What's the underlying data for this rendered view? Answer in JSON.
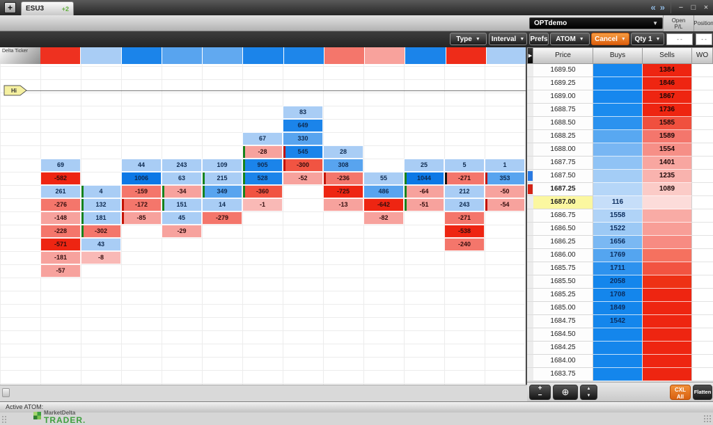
{
  "window": {
    "new_tab": "+",
    "tab": "ESU3",
    "tab_badge": "+2",
    "nav_left": "«",
    "nav_right": "»",
    "minimize": "−",
    "maximize": "□",
    "close": "×"
  },
  "toolbar": {
    "type": "Type",
    "interval": "Interval",
    "prefs": "Prefs",
    "atom": "ATOM",
    "cancel": "Cancel",
    "qty": "Qty 1",
    "account": "OPTdemo",
    "open_pl_label": "Open\nP/L",
    "open_pl_value": "- -",
    "position_label": "Position",
    "position_value": "- -"
  },
  "delta_ticker": {
    "label": "Delta Ticker",
    "cells": [
      "#ee3120",
      "#a9cdf5",
      "#1b84ea",
      "#58a4ef",
      "#61a9f0",
      "#1b84ea",
      "#1e86ea",
      "#f4766b",
      "#f8a29c",
      "#1b84ea",
      "#ee2c19",
      "#a9cdf5"
    ]
  },
  "hi_marker": "Hi",
  "chart_data": {
    "type": "heatmap",
    "title": "Delta Ticker footprint",
    "palette": {
      "lb": "#a9cdf5",
      "mb": "#58a4ef",
      "sb": "#1b84ea",
      "xb": "#0c78e6",
      "lr": "#f9b9b6",
      "pr": "#f7a29d",
      "sr": "#f4766b",
      "mr": "#f15442",
      "xr": "#ee2512"
    },
    "bar_colors": {
      "green": "#15831c",
      "red": "#c41303",
      "black": "#111111"
    },
    "columns": [
      {
        "x": 1,
        "cells": [
          {
            "row": 4,
            "value": 69,
            "color": "lb"
          },
          {
            "row": 5,
            "value": -582,
            "color": "xr"
          },
          {
            "row": 6,
            "value": 261,
            "color": "lb"
          },
          {
            "row": 7,
            "value": -276,
            "color": "sr"
          },
          {
            "row": 8,
            "value": -148,
            "color": "pr"
          },
          {
            "row": 9,
            "value": -228,
            "color": "sr"
          },
          {
            "row": 10,
            "value": -571,
            "color": "xr"
          },
          {
            "row": 11,
            "value": -181,
            "color": "pr"
          },
          {
            "row": 12,
            "value": -57,
            "color": "pr"
          }
        ]
      },
      {
        "x": 2,
        "cells": [
          {
            "row": 6,
            "value": 4,
            "color": "lb",
            "bar": "green"
          },
          {
            "row": 7,
            "value": 132,
            "color": "lb",
            "bar": "green"
          },
          {
            "row": 8,
            "value": 181,
            "color": "lb",
            "bar": "green"
          },
          {
            "row": 9,
            "value": -302,
            "color": "sr",
            "bar": "green"
          },
          {
            "row": 10,
            "value": 43,
            "color": "lb"
          },
          {
            "row": 11,
            "value": -8,
            "color": "lr"
          }
        ]
      },
      {
        "x": 3,
        "cells": [
          {
            "row": 4,
            "value": 44,
            "color": "lb"
          },
          {
            "row": 5,
            "value": 1006,
            "color": "xb"
          },
          {
            "row": 6,
            "value": -159,
            "color": "sr"
          },
          {
            "row": 7,
            "value": -172,
            "color": "sr",
            "bar": "red"
          },
          {
            "row": 8,
            "value": -85,
            "color": "pr",
            "bar": "red"
          }
        ]
      },
      {
        "x": 4,
        "cells": [
          {
            "row": 4,
            "value": 243,
            "color": "lb"
          },
          {
            "row": 5,
            "value": 63,
            "color": "lb"
          },
          {
            "row": 6,
            "value": -34,
            "color": "pr",
            "bar": "green"
          },
          {
            "row": 7,
            "value": 151,
            "color": "lb",
            "bar": "green"
          },
          {
            "row": 8,
            "value": 45,
            "color": "lb"
          },
          {
            "row": 9,
            "value": -29,
            "color": "pr"
          }
        ]
      },
      {
        "x": 5,
        "cells": [
          {
            "row": 4,
            "value": 109,
            "color": "lb"
          },
          {
            "row": 5,
            "value": 215,
            "color": "lb",
            "bar": "green"
          },
          {
            "row": 6,
            "value": 349,
            "color": "mb",
            "bar": "green"
          },
          {
            "row": 7,
            "value": 14,
            "color": "lb"
          },
          {
            "row": 8,
            "value": -279,
            "color": "sr"
          }
        ]
      },
      {
        "x": 6,
        "cells": [
          {
            "row": 2,
            "value": 67,
            "color": "lb"
          },
          {
            "row": 3,
            "value": -28,
            "color": "pr",
            "bar": "green"
          },
          {
            "row": 4,
            "value": 905,
            "color": "sb",
            "bar": "green"
          },
          {
            "row": 5,
            "value": 528,
            "color": "sb",
            "bar": "green"
          },
          {
            "row": 6,
            "value": -360,
            "color": "mr",
            "bar": "green"
          },
          {
            "row": 7,
            "value": -1,
            "color": "lr"
          }
        ]
      },
      {
        "x": 7,
        "cells": [
          {
            "row": 0,
            "value": 83,
            "color": "lb"
          },
          {
            "row": 1,
            "value": 649,
            "color": "sb"
          },
          {
            "row": 2,
            "value": 330,
            "color": "mb"
          },
          {
            "row": 3,
            "value": 545,
            "color": "sb",
            "bar": "red"
          },
          {
            "row": 4,
            "value": -300,
            "color": "mr",
            "bar": "red"
          },
          {
            "row": 5,
            "value": -52,
            "color": "pr"
          }
        ]
      },
      {
        "x": 8,
        "cells": [
          {
            "row": 3,
            "value": 28,
            "color": "lb"
          },
          {
            "row": 4,
            "value": 308,
            "color": "mb"
          },
          {
            "row": 5,
            "value": -236,
            "color": "sr",
            "bar": "red"
          },
          {
            "row": 6,
            "value": -725,
            "color": "xr"
          },
          {
            "row": 7,
            "value": -13,
            "color": "pr"
          }
        ]
      },
      {
        "x": 9,
        "cells": [
          {
            "row": 5,
            "value": 55,
            "color": "lb"
          },
          {
            "row": 6,
            "value": 486,
            "color": "mb"
          },
          {
            "row": 7,
            "value": -642,
            "color": "xr"
          },
          {
            "row": 8,
            "value": -82,
            "color": "pr"
          }
        ]
      },
      {
        "x": 10,
        "cells": [
          {
            "row": 4,
            "value": 25,
            "color": "lb"
          },
          {
            "row": 5,
            "value": 1044,
            "color": "xb",
            "bar": "green"
          },
          {
            "row": 6,
            "value": -64,
            "color": "pr",
            "bar": "green"
          },
          {
            "row": 7,
            "value": -51,
            "color": "pr",
            "bar": "green"
          }
        ]
      },
      {
        "x": 11,
        "cells": [
          {
            "row": 4,
            "value": 5,
            "color": "lb"
          },
          {
            "row": 5,
            "value": -271,
            "color": "sr",
            "bar": "black"
          },
          {
            "row": 6,
            "value": 212,
            "color": "lb"
          },
          {
            "row": 7,
            "value": 243,
            "color": "lb"
          },
          {
            "row": 8,
            "value": -271,
            "color": "sr"
          },
          {
            "row": 9,
            "value": -538,
            "color": "xr"
          },
          {
            "row": 10,
            "value": -240,
            "color": "sr"
          }
        ]
      },
      {
        "x": 12,
        "cells": [
          {
            "row": 4,
            "value": 1,
            "color": "lb"
          },
          {
            "row": 5,
            "value": 353,
            "color": "mb",
            "bar": "red"
          },
          {
            "row": 6,
            "value": -50,
            "color": "pr"
          },
          {
            "row": 7,
            "value": -54,
            "color": "pr",
            "bar": "red"
          }
        ]
      }
    ]
  },
  "ladder": {
    "arrow": "▶",
    "headers": [
      "Price",
      "Buys",
      "Sells",
      "WO"
    ],
    "rows": [
      {
        "price": "1689.50",
        "buy": "",
        "sell": "1384",
        "buy_bg": "#1687ee",
        "sell_bg": "#ee2511"
      },
      {
        "price": "1689.25",
        "buy": "",
        "sell": "1846",
        "buy_bg": "#1687ee",
        "sell_bg": "#ee2511"
      },
      {
        "price": "1689.00",
        "buy": "",
        "sell": "1867",
        "buy_bg": "#1687ee",
        "sell_bg": "#ee2511"
      },
      {
        "price": "1688.75",
        "buy": "",
        "sell": "1736",
        "buy_bg": "#1b8bee",
        "sell_bg": "#ee2511"
      },
      {
        "price": "1688.50",
        "buy": "",
        "sell": "1585",
        "buy_bg": "#2b92ef",
        "sell_bg": "#f0503e"
      },
      {
        "price": "1688.25",
        "buy": "",
        "sell": "1589",
        "buy_bg": "#58a8f1",
        "sell_bg": "#f4766c"
      },
      {
        "price": "1688.00",
        "buy": "",
        "sell": "1554",
        "buy_bg": "#78b6f3",
        "sell_bg": "#f68f87"
      },
      {
        "price": "1687.75",
        "buy": "",
        "sell": "1401",
        "buy_bg": "#90c3f5",
        "sell_bg": "#f8a6a0"
      },
      {
        "price": "1687.50",
        "buy": "",
        "sell": "1235",
        "buy_bg": "#a4cdf6",
        "sell_bg": "#f9b3ae",
        "mark": "#2a7ae2"
      },
      {
        "price": "1687.25",
        "buy": "",
        "sell": "1089",
        "buy_bg": "#b5d6f8",
        "sell_bg": "#fbcbc7",
        "bold": true,
        "mark": "#d42316"
      },
      {
        "price": "1687.00",
        "buy": "116",
        "sell": "",
        "buy_bg": "#c6def9",
        "sell_bg": "#fcdcda",
        "highlight": true
      },
      {
        "price": "1686.75",
        "buy": "1558",
        "sell": "",
        "buy_bg": "#b0d3f7",
        "sell_bg": "#f9aba5"
      },
      {
        "price": "1686.50",
        "buy": "1522",
        "sell": "",
        "buy_bg": "#9cc9f5",
        "sell_bg": "#f89e97"
      },
      {
        "price": "1686.25",
        "buy": "1656",
        "sell": "",
        "buy_bg": "#7ab8f3",
        "sell_bg": "#f78b82"
      },
      {
        "price": "1686.00",
        "buy": "1769",
        "sell": "",
        "buy_bg": "#54a5f0",
        "sell_bg": "#f5715f"
      },
      {
        "price": "1685.75",
        "buy": "1711",
        "sell": "",
        "buy_bg": "#2d92ee",
        "sell_bg": "#f25441"
      },
      {
        "price": "1685.50",
        "buy": "2058",
        "sell": "",
        "buy_bg": "#1486ec",
        "sell_bg": "#ee3115"
      },
      {
        "price": "1685.25",
        "buy": "1708",
        "sell": "",
        "buy_bg": "#1486ec",
        "sell_bg": "#ee2511"
      },
      {
        "price": "1685.00",
        "buy": "1849",
        "sell": "",
        "buy_bg": "#1486ec",
        "sell_bg": "#ee2511"
      },
      {
        "price": "1684.75",
        "buy": "1542",
        "sell": "",
        "buy_bg": "#1486ec",
        "sell_bg": "#ee2511"
      },
      {
        "price": "1684.50",
        "buy": "",
        "sell": "",
        "buy_bg": "#1486ec",
        "sell_bg": "#ee2511"
      },
      {
        "price": "1684.25",
        "buy": "",
        "sell": "",
        "buy_bg": "#1486ec",
        "sell_bg": "#ee2511"
      },
      {
        "price": "1684.00",
        "buy": "",
        "sell": "",
        "buy_bg": "#1486ec",
        "sell_bg": "#ee2511"
      },
      {
        "price": "1683.75",
        "buy": "",
        "sell": "",
        "buy_bg": "#1486ec",
        "sell_bg": "#ee2511"
      }
    ],
    "controls": {
      "zoom_in": "+",
      "zoom_out": "−",
      "center": "⊕",
      "up": "▲",
      "down": "▼",
      "cxl_line1": "CXL",
      "cxl_line2": "All",
      "flatten": "Flatten"
    }
  },
  "bottom": {
    "active_atom": "Active ATOM:",
    "brand_top": "MarketDelta",
    "brand_bottom": "TRADER."
  }
}
